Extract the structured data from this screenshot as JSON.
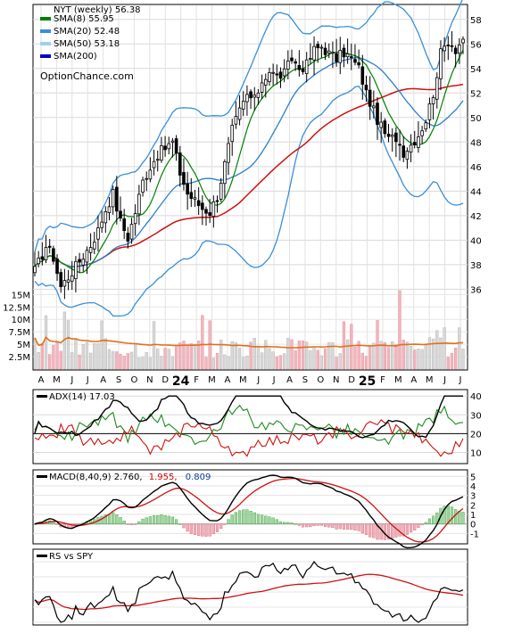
{
  "price_panel": {
    "title": "NYT (weekly) 56.38",
    "legend": [
      {
        "label": "SMA(8) 55.95",
        "color": "#008000"
      },
      {
        "label": "SMA(20) 52.48",
        "color": "#3a8fd6"
      },
      {
        "label": "SMA(50) 53.18",
        "color": "#9fd0f0"
      },
      {
        "label": "SMA(200)",
        "color": "#0000c8"
      }
    ],
    "watermark": "OptionChance.com",
    "y_ticks": [
      36,
      38,
      40,
      42,
      44,
      46,
      48,
      50,
      52,
      54,
      56,
      58
    ],
    "ylim": [
      34.5,
      59
    ],
    "volume_ticks": [
      "15M",
      "12.5M",
      "10M",
      "7.5M",
      "5M",
      "2.5M"
    ],
    "volume_tick_values": [
      15,
      12.5,
      10,
      7.5,
      5,
      2.5
    ],
    "month_labels": [
      "A",
      "M",
      "J",
      "J",
      "A",
      "S",
      "O",
      "N",
      "D",
      "24",
      "F",
      "M",
      "A",
      "M",
      "J",
      "J",
      "A",
      "S",
      "O",
      "N",
      "D",
      "25",
      "F",
      "M",
      "A",
      "M",
      "J",
      "J"
    ],
    "year_labels": [
      "24",
      "25"
    ]
  },
  "adx_panel": {
    "title": "ADX(14) 17.03",
    "y_ticks": [
      10,
      20,
      30,
      40
    ],
    "ylim": [
      5,
      42
    ]
  },
  "macd_panel": {
    "title": "MACD(8,40,9) 2.760,",
    "signal_label": "1.955,",
    "hist_label": "0.809",
    "y_ticks": [
      -1,
      0,
      1,
      2,
      3,
      4,
      5
    ],
    "ylim": [
      -1.9,
      5.4
    ]
  },
  "rs_panel": {
    "title": "RS vs SPY"
  },
  "chart_data": {
    "type": "line",
    "period": "weekly",
    "symbol": "NYT",
    "weeks": 116,
    "close_anchors": [
      [
        0,
        37.5
      ],
      [
        3,
        39.5
      ],
      [
        5,
        38.6
      ],
      [
        7,
        36.2
      ],
      [
        9,
        37.0
      ],
      [
        12,
        38.3
      ],
      [
        15,
        39.6
      ],
      [
        17,
        40.8
      ],
      [
        19,
        42.5
      ],
      [
        21,
        43.8
      ],
      [
        23,
        41.5
      ],
      [
        25,
        40.2
      ],
      [
        27,
        42.3
      ],
      [
        29,
        44.8
      ],
      [
        31,
        46.0
      ],
      [
        33,
        47.0
      ],
      [
        35,
        47.5
      ],
      [
        37,
        48.0
      ],
      [
        39,
        45.5
      ],
      [
        41,
        43.8
      ],
      [
        43,
        43.2
      ],
      [
        45,
        42.6
      ],
      [
        47,
        42.3
      ],
      [
        49,
        43.6
      ],
      [
        51,
        46.2
      ],
      [
        53,
        49.0
      ],
      [
        55,
        50.5
      ],
      [
        57,
        51.8
      ],
      [
        59,
        51.4
      ],
      [
        61,
        53.0
      ],
      [
        63,
        53.8
      ],
      [
        65,
        53.3
      ],
      [
        67,
        53.6
      ],
      [
        69,
        54.8
      ],
      [
        71,
        54.0
      ],
      [
        73,
        54.3
      ],
      [
        75,
        55.5
      ],
      [
        77,
        55.8
      ],
      [
        79,
        55.2
      ],
      [
        81,
        54.8
      ],
      [
        83,
        55.3
      ],
      [
        85,
        54.8
      ],
      [
        87,
        54.0
      ],
      [
        89,
        52.0
      ],
      [
        91,
        50.5
      ],
      [
        93,
        49.2
      ],
      [
        95,
        48.2
      ],
      [
        97,
        48.4
      ],
      [
        99,
        47.2
      ],
      [
        101,
        47.8
      ],
      [
        103,
        48.6
      ],
      [
        105,
        49.8
      ],
      [
        107,
        52.0
      ],
      [
        109,
        55.2
      ],
      [
        111,
        56.3
      ],
      [
        113,
        55.6
      ],
      [
        115,
        56.38
      ]
    ],
    "sma": {
      "sma8": 55.95,
      "sma20": 52.48,
      "sma50": 53.18
    },
    "adx": 17.03,
    "macd": {
      "macd": 2.76,
      "signal": 1.955,
      "histogram": 0.809
    }
  }
}
